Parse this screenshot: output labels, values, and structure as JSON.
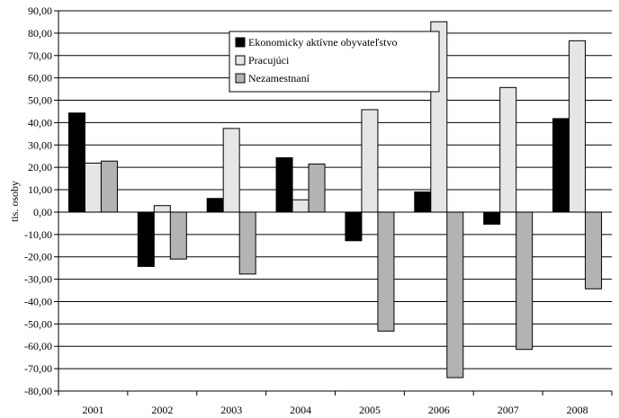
{
  "chart_data": {
    "type": "bar",
    "title": "",
    "xlabel": "",
    "ylabel": "tis. osoby",
    "ylim": [
      -80,
      90
    ],
    "ytick_step": 10,
    "ytick_labels": [
      "90,00",
      "80,00",
      "70,00",
      "60,00",
      "50,00",
      "40,00",
      "30,00",
      "20,00",
      "10,00",
      "0,00",
      "-10,00",
      "-20,00",
      "-30,00",
      "-40,00",
      "-50,00",
      "-60,00",
      "-70,00",
      "-80,00"
    ],
    "grid": true,
    "legend_position": "top-center",
    "categories": [
      "2001",
      "2002",
      "2003",
      "2004",
      "2005",
      "2006",
      "2007",
      "2008"
    ],
    "series": [
      {
        "name": "Ekonomicky aktívne obyvateľstvo",
        "color": "#000000",
        "values": [
          44.3,
          -24.3,
          6.1,
          24.3,
          -12.8,
          9.0,
          -5.4,
          41.8
        ]
      },
      {
        "name": "Pracujúci",
        "color": "#e6e6e6",
        "values": [
          21.9,
          2.9,
          37.4,
          5.5,
          45.8,
          85.1,
          55.7,
          76.6
        ]
      },
      {
        "name": "Nezamestnaní",
        "color": "#b3b3b3",
        "values": [
          22.8,
          -21.0,
          -27.7,
          21.5,
          -53.2,
          -74.0,
          -61.4,
          -34.3
        ]
      }
    ]
  }
}
